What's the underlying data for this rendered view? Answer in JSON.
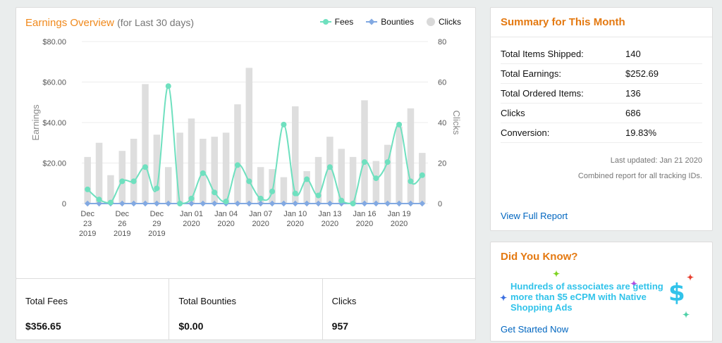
{
  "chart_card": {
    "title": "Earnings Overview",
    "subtitle": "(for Last 30 days)",
    "legend": [
      {
        "key": "fees",
        "label": "Fees"
      },
      {
        "key": "bounties",
        "label": "Bounties"
      },
      {
        "key": "clicks",
        "label": "Clicks"
      }
    ]
  },
  "chart_data": {
    "type": "bar+line",
    "title": "Earnings Overview (for Last 30 days)",
    "ylabel": "Earnings",
    "y2label": "Clicks",
    "ylim": [
      0,
      80
    ],
    "y2lim": [
      0,
      80
    ],
    "yticks": [
      "0",
      "$20.00",
      "$40.00",
      "$60.00",
      "$80.00"
    ],
    "yticks_values": [
      0,
      20,
      40,
      60,
      80
    ],
    "y2ticks": [
      "0",
      "20",
      "40",
      "60",
      "80"
    ],
    "grid": true,
    "legend_position": "top-right",
    "x_tick_labels": [
      {
        "index": 0,
        "lines": [
          "Dec",
          "23",
          "2019"
        ]
      },
      {
        "index": 3,
        "lines": [
          "Dec",
          "26",
          "2019"
        ]
      },
      {
        "index": 6,
        "lines": [
          "Dec",
          "29",
          "2019"
        ]
      },
      {
        "index": 9,
        "lines": [
          "Jan 01",
          "2020"
        ]
      },
      {
        "index": 12,
        "lines": [
          "Jan 04",
          "2020"
        ]
      },
      {
        "index": 15,
        "lines": [
          "Jan 07",
          "2020"
        ]
      },
      {
        "index": 18,
        "lines": [
          "Jan 10",
          "2020"
        ]
      },
      {
        "index": 21,
        "lines": [
          "Jan 13",
          "2020"
        ]
      },
      {
        "index": 24,
        "lines": [
          "Jan 16",
          "2020"
        ]
      },
      {
        "index": 27,
        "lines": [
          "Jan 19",
          "2020"
        ]
      }
    ],
    "series": [
      {
        "name": "Clicks",
        "kind": "bar",
        "axis": "right",
        "color": "#dedede",
        "values": [
          23,
          30,
          14,
          26,
          32,
          59,
          34,
          18,
          35,
          42,
          32,
          33,
          35,
          49,
          67,
          18,
          17,
          13,
          48,
          16,
          23,
          33,
          27,
          23,
          51,
          21,
          29,
          38,
          47,
          25
        ]
      },
      {
        "name": "Fees",
        "kind": "line",
        "axis": "left",
        "color": "#6fe0bf",
        "values": [
          7,
          2,
          0.5,
          11,
          11,
          18,
          7.5,
          58,
          0,
          2.5,
          15,
          5.5,
          1,
          19,
          11,
          2.5,
          6,
          39,
          5,
          12,
          4,
          18,
          1.5,
          0,
          20.5,
          12.5,
          20.5,
          39,
          11,
          14
        ]
      },
      {
        "name": "Bounties",
        "kind": "line",
        "axis": "left",
        "color": "#82a9e2",
        "values": [
          0,
          0,
          0,
          0,
          0,
          0,
          0,
          0,
          0,
          0,
          0,
          0,
          0,
          0,
          0,
          0,
          0,
          0,
          0,
          0,
          0,
          0,
          0,
          0,
          0,
          0,
          0,
          0,
          0,
          0
        ]
      }
    ]
  },
  "totals": [
    {
      "label": "Total Fees",
      "value": "$356.65"
    },
    {
      "label": "Total Bounties",
      "value": "$0.00"
    },
    {
      "label": "Clicks",
      "value": "957"
    }
  ],
  "summary": {
    "title": "Summary for This Month",
    "rows": [
      {
        "label": "Total Items Shipped:",
        "value": "140"
      },
      {
        "label": "Total Earnings:",
        "value": "$252.69"
      },
      {
        "label": "Total Ordered Items:",
        "value": "136"
      },
      {
        "label": "Clicks",
        "value": "686"
      },
      {
        "label": "Conversion:",
        "value": "19.83%"
      }
    ],
    "last_updated": "Last updated: Jan 21 2020",
    "combined_note": "Combined report for all tracking IDs.",
    "link": "View Full Report"
  },
  "did_you_know": {
    "title": "Did You Know?",
    "text": "Hundreds of associates are getting more than $5 eCPM with Native Shopping Ads",
    "dollar_glyph": "$",
    "link": "Get Started Now"
  }
}
